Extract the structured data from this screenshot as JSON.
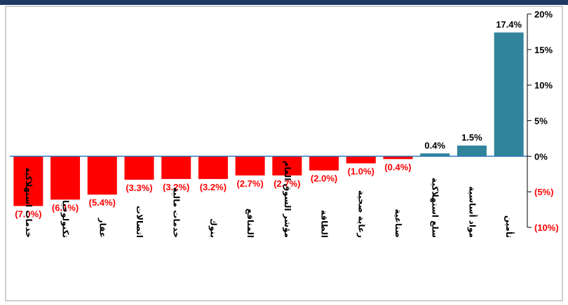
{
  "colors": {
    "positive": "#31849B",
    "negative": "#FF0000",
    "zero_line": "#2E75B6",
    "top_band": "#1F3864",
    "axis": "#000000",
    "frame": "#9E9E9E",
    "positive_label": "#000000",
    "negative_label": "#FF0000"
  },
  "chart_data": {
    "type": "bar",
    "orientation": "vertical",
    "categories": [
      "خدمات استهلاكية",
      "تكنولوجيا",
      "عقار",
      "اتصالات",
      "خدمات مالية",
      "بنوك",
      "المنافع",
      "مؤشر السوق العام",
      "الطاقة",
      "رعاية صحية",
      "صناعية",
      "سلع استهلاكية",
      "مواد أساسية",
      "تأمين"
    ],
    "values": [
      -7.0,
      -6.1,
      -5.4,
      -3.3,
      -3.2,
      -3.2,
      -2.7,
      -2.7,
      -2.0,
      -1.0,
      -0.4,
      0.4,
      1.5,
      17.4
    ],
    "data_labels": [
      "(7.0%)",
      "(6.1%)",
      "(5.4%)",
      "(3.3%)",
      "(3.2%)",
      "(3.2%)",
      "(2.7%)",
      "(2.7%)",
      "(2.0%)",
      "(1.0%)",
      "(0.4%)",
      "0.4%",
      "1.5%",
      "17.4%"
    ],
    "y_axis": {
      "position": "right",
      "ylim": [
        -10,
        20
      ],
      "ticks": [
        20,
        15,
        10,
        5,
        0,
        -5,
        -10
      ],
      "tick_labels": [
        "20%",
        "15%",
        "10%",
        "5%",
        "0%",
        "(5%)",
        "(10%)"
      ]
    },
    "title": "",
    "xlabel": "",
    "ylabel": "",
    "grid": false,
    "legend": "none"
  }
}
